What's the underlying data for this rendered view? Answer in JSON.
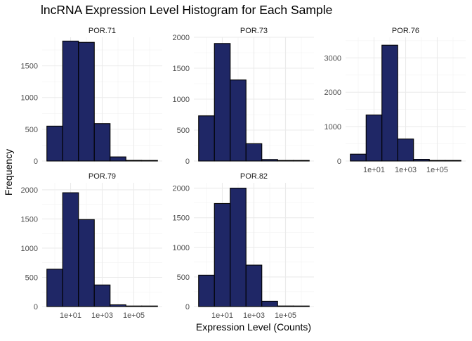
{
  "chart_data": {
    "type": "bar",
    "title": "lncRNA Expression Level Histogram for Each Sample",
    "xlabel": "Expression Level (Counts)",
    "ylabel": "Frequency",
    "x_scale": "log10",
    "x_ticks": [
      "1e+01",
      "1e+03",
      "1e+05"
    ],
    "bin_edges_log10": [
      -0.5,
      0.5,
      1.5,
      2.5,
      3.5,
      4.5,
      5.5,
      6.5
    ],
    "grid": true,
    "bar_color": "#1f2766",
    "bar_outline": "#000000",
    "panels": [
      {
        "label": "POR.71",
        "values": [
          550,
          1890,
          1870,
          590,
          65,
          10,
          3
        ],
        "ylim": [
          0,
          1950
        ],
        "yticks": [
          0,
          500,
          1000,
          1500
        ]
      },
      {
        "label": "POR.73",
        "values": [
          730,
          1900,
          1310,
          280,
          25,
          8,
          3
        ],
        "ylim": [
          0,
          2000
        ],
        "yticks": [
          0,
          500,
          1000,
          1500,
          2000
        ]
      },
      {
        "label": "POR.76",
        "values": [
          200,
          1340,
          3370,
          640,
          50,
          10,
          5
        ],
        "ylim": [
          0,
          3600
        ],
        "yticks": [
          0,
          1000,
          2000,
          3000
        ]
      },
      {
        "label": "POR.79",
        "values": [
          640,
          1950,
          1490,
          370,
          30,
          8,
          3
        ],
        "ylim": [
          0,
          2120
        ],
        "yticks": [
          0,
          500,
          1000,
          1500,
          2000
        ]
      },
      {
        "label": "POR.82",
        "values": [
          530,
          1740,
          2000,
          700,
          90,
          10,
          3
        ],
        "ylim": [
          0,
          2090
        ],
        "yticks": [
          0,
          500,
          1000,
          1500,
          2000
        ]
      }
    ]
  }
}
